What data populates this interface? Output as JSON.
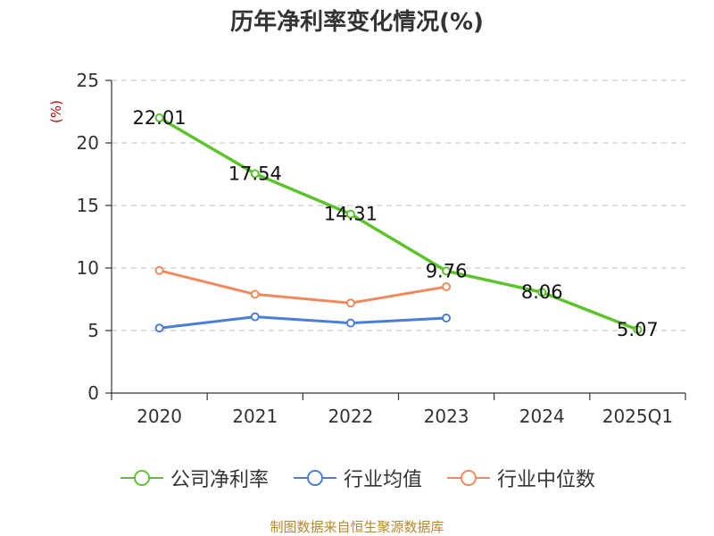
{
  "title": "历年净利率变化情况(%)",
  "unit_label": "(%)",
  "source": "制图数据来自恒生聚源数据库",
  "chart_data": {
    "type": "line",
    "title": "历年净利率变化情况(%)",
    "ylabel": "(%)",
    "xlabel": "",
    "categories": [
      "2020",
      "2021",
      "2022",
      "2023",
      "2024",
      "2025Q1"
    ],
    "ylim": [
      0,
      25
    ],
    "yticks": [
      0,
      5,
      10,
      15,
      20,
      25
    ],
    "grid": true,
    "legend_position": "bottom",
    "series": [
      {
        "name": "公司净利率",
        "color": "#5cc42a",
        "values": [
          22.01,
          17.54,
          14.31,
          9.76,
          8.06,
          5.07
        ],
        "labels": [
          "22.01",
          "17.54",
          "14.31",
          "9.76",
          "8.06",
          "5.07"
        ]
      },
      {
        "name": "行业均值",
        "color": "#4a7fd8",
        "values": [
          5.2,
          6.1,
          5.6,
          6.0,
          null,
          null
        ]
      },
      {
        "name": "行业中位数",
        "color": "#f08a5d",
        "values": [
          9.8,
          7.9,
          7.2,
          8.5,
          null,
          null
        ]
      }
    ]
  }
}
